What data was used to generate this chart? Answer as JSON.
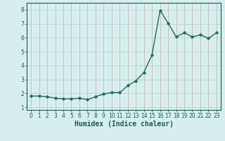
{
  "x": [
    0,
    1,
    2,
    3,
    4,
    5,
    6,
    7,
    8,
    9,
    10,
    11,
    12,
    13,
    14,
    15,
    16,
    17,
    18,
    19,
    20,
    21,
    22,
    23
  ],
  "y": [
    1.8,
    1.8,
    1.75,
    1.65,
    1.6,
    1.6,
    1.65,
    1.55,
    1.75,
    1.95,
    2.05,
    2.05,
    2.55,
    2.9,
    3.5,
    4.75,
    7.95,
    7.05,
    6.05,
    6.35,
    6.05,
    6.2,
    5.95,
    6.35
  ],
  "line_color": "#1a6b5a",
  "marker": "o",
  "markersize": 2.5,
  "linewidth": 1.0,
  "xlabel": "Humidex (Indice chaleur)",
  "xlim": [
    -0.5,
    23.5
  ],
  "ylim": [
    0.8,
    8.5
  ],
  "yticks": [
    1,
    2,
    3,
    4,
    5,
    6,
    7,
    8
  ],
  "xticks": [
    0,
    1,
    2,
    3,
    4,
    5,
    6,
    7,
    8,
    9,
    10,
    11,
    12,
    13,
    14,
    15,
    16,
    17,
    18,
    19,
    20,
    21,
    22,
    23
  ],
  "bg_color": "#d6efee",
  "grid_color_x": "#c8a8a8",
  "grid_color_y": "#b0cccc",
  "tick_fontsize": 5.5,
  "xlabel_fontsize": 7.0,
  "axis_color": "#1a5a50"
}
